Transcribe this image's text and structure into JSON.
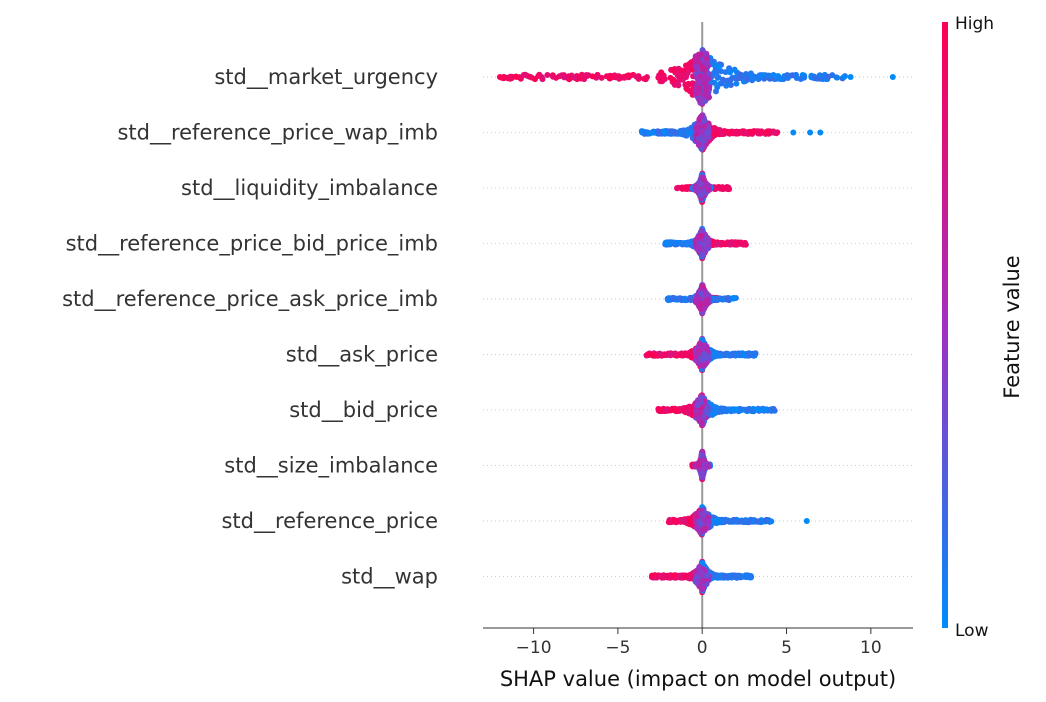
{
  "chart_data": {
    "type": "scatter",
    "subtype": "shap-beeswarm",
    "xlabel": "SHAP value (impact on model output)",
    "xlim": [
      -13,
      12.5
    ],
    "xticks": [
      -10,
      -5,
      0,
      5,
      10
    ],
    "xtick_labels": [
      "−10",
      "−5",
      "0",
      "5",
      "10"
    ],
    "grid": false,
    "colorbar": {
      "label": "Feature value",
      "high_label": "High",
      "low_label": "Low",
      "high_color": "#ff0052",
      "low_color": "#008bfb"
    },
    "features": [
      {
        "name": "std__market_urgency",
        "high_range": [
          -12,
          0
        ],
        "low_range": [
          0,
          8.5
        ],
        "outliers": [
          -11,
          -12,
          8.4,
          8.8,
          11.3
        ],
        "spread": 1.0,
        "center_mix": true
      },
      {
        "name": "std__reference_price_wap_imb",
        "high_range": [
          0,
          4.5
        ],
        "low_range": [
          -3.6,
          0
        ],
        "outliers": [
          5.4,
          6.4,
          7.0
        ],
        "spread": 0.55,
        "center_mix": true
      },
      {
        "name": "std__liquidity_imbalance",
        "high_range": [
          -1.5,
          1.7
        ],
        "low_range": [
          -0.6,
          0.5
        ],
        "outliers": [],
        "spread": 0.4,
        "center_mix": true
      },
      {
        "name": "std__reference_price_bid_price_imb",
        "high_range": [
          0,
          2.6
        ],
        "low_range": [
          -2.2,
          0
        ],
        "outliers": [],
        "spread": 0.4,
        "center_mix": true
      },
      {
        "name": "std__reference_price_ask_price_imb",
        "high_range": [
          0,
          0.9
        ],
        "low_range": [
          -2.1,
          2.2
        ],
        "outliers": [],
        "spread": 0.4,
        "center_mix": true
      },
      {
        "name": "std__ask_price",
        "high_range": [
          -3.3,
          0
        ],
        "low_range": [
          0,
          3.2
        ],
        "outliers": [],
        "spread": 0.45,
        "center_mix": false
      },
      {
        "name": "std__bid_price",
        "high_range": [
          -2.7,
          0
        ],
        "low_range": [
          0,
          4.3
        ],
        "outliers": [],
        "spread": 0.45,
        "center_mix": false
      },
      {
        "name": "std__size_imbalance",
        "high_range": [
          -0.6,
          0.3
        ],
        "low_range": [
          -0.4,
          0.5
        ],
        "outliers": [],
        "spread": 0.4,
        "center_mix": true
      },
      {
        "name": "std__reference_price",
        "high_range": [
          -2.0,
          0
        ],
        "low_range": [
          0,
          4.1
        ],
        "outliers": [
          6.2
        ],
        "spread": 0.4,
        "center_mix": false
      },
      {
        "name": "std__wap",
        "high_range": [
          -3.0,
          0
        ],
        "low_range": [
          0,
          2.9
        ],
        "outliers": [],
        "spread": 0.45,
        "center_mix": false
      }
    ]
  }
}
